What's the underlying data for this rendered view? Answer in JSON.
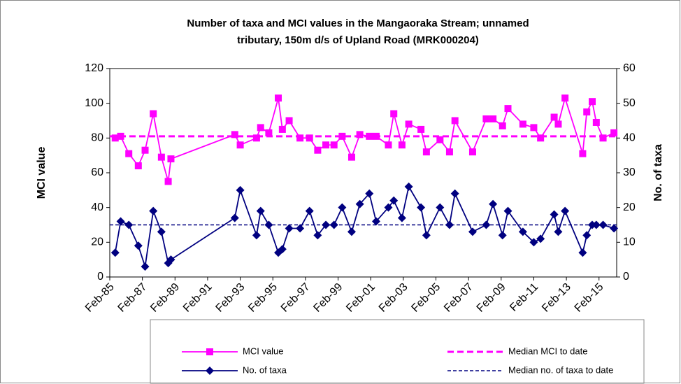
{
  "chart_data": {
    "type": "line",
    "title": [
      "Number of taxa and MCI values in the Mangaoraka Stream; unnamed",
      "tributary, 150m d/s of Upland Road (MRK000204)"
    ],
    "y_label": "MCI value",
    "y2_label": "No. of taxa",
    "x": [
      "Jun-85",
      "Oct-85",
      "Apr-86",
      "Nov-86",
      "Apr-87",
      "Oct-87",
      "Apr-88",
      "Sep-88",
      "Nov-88",
      "Oct-92",
      "Feb-93",
      "Feb-94",
      "May-94",
      "Nov-94",
      "Jun-95",
      "Sep-95",
      "Feb-96",
      "Oct-96",
      "May-97",
      "Nov-97",
      "May-98",
      "Nov-98",
      "May-99",
      "Dec-99",
      "Jun-00",
      "Jan-01",
      "Jun-01",
      "Mar-02",
      "Jul-02",
      "Jan-03",
      "Jun-03",
      "Mar-04",
      "Jul-04",
      "May-05",
      "Dec-05",
      "Apr-06",
      "May-07",
      "Mar-08",
      "Aug-08",
      "Mar-09",
      "Jul-09",
      "Jun-10",
      "Feb-11",
      "Jul-11",
      "May-12",
      "Aug-12",
      "Jan-13",
      "Feb-14",
      "May-14",
      "Sep-14",
      "Dec-14",
      "May-15",
      "Jan-16"
    ],
    "xlim": [
      "Feb-85",
      "Mar-16"
    ],
    "xticks": [
      "Feb-85",
      "Feb-87",
      "Feb-89",
      "Feb-91",
      "Feb-93",
      "Feb-95",
      "Feb-97",
      "Feb-99",
      "Feb-01",
      "Feb-03",
      "Feb-05",
      "Feb-07",
      "Feb-09",
      "Feb-11",
      "Feb-13",
      "Feb-15"
    ],
    "ylim": [
      0,
      120
    ],
    "yticks": [
      0,
      20,
      40,
      60,
      80,
      100,
      120
    ],
    "y2lim": [
      0,
      60
    ],
    "y2ticks": [
      0,
      10,
      20,
      30,
      40,
      50,
      60
    ],
    "series": [
      {
        "name": "MCI value",
        "color": "#ff00ff",
        "marker": "square",
        "axis": "y",
        "values": [
          80,
          81,
          71,
          64,
          73,
          94,
          69,
          55,
          68,
          82,
          76,
          80,
          86,
          83,
          103,
          85,
          90,
          80,
          80,
          73,
          76,
          76,
          81,
          69,
          82,
          81,
          81,
          76,
          94,
          76,
          88,
          85,
          72,
          79,
          72,
          90,
          72,
          91,
          91,
          87,
          97,
          88,
          86,
          80,
          92,
          88,
          103,
          71,
          95,
          101,
          89,
          80,
          83
        ]
      },
      {
        "name": "No. of taxa",
        "color": "#000080",
        "marker": "diamond",
        "axis": "y2",
        "values": [
          7,
          16,
          15,
          9,
          3,
          19,
          13,
          4,
          5,
          17,
          25,
          12,
          19,
          15,
          7,
          8,
          14,
          14,
          19,
          12,
          15,
          15,
          20,
          13,
          21,
          24,
          16,
          20,
          22,
          17,
          26,
          20,
          12,
          20,
          15,
          24,
          13,
          15,
          21,
          12,
          19,
          13,
          10,
          11,
          18,
          13,
          19,
          7,
          12,
          15,
          15,
          15,
          14
        ]
      }
    ],
    "reference_lines": [
      {
        "name": "Median MCI to date",
        "color": "#ff00ff",
        "axis": "y",
        "value": 81,
        "width": 3
      },
      {
        "name": "Median no. of taxa to date",
        "color": "#000080",
        "axis": "y2",
        "value": 15,
        "width": 1.5
      }
    ]
  }
}
